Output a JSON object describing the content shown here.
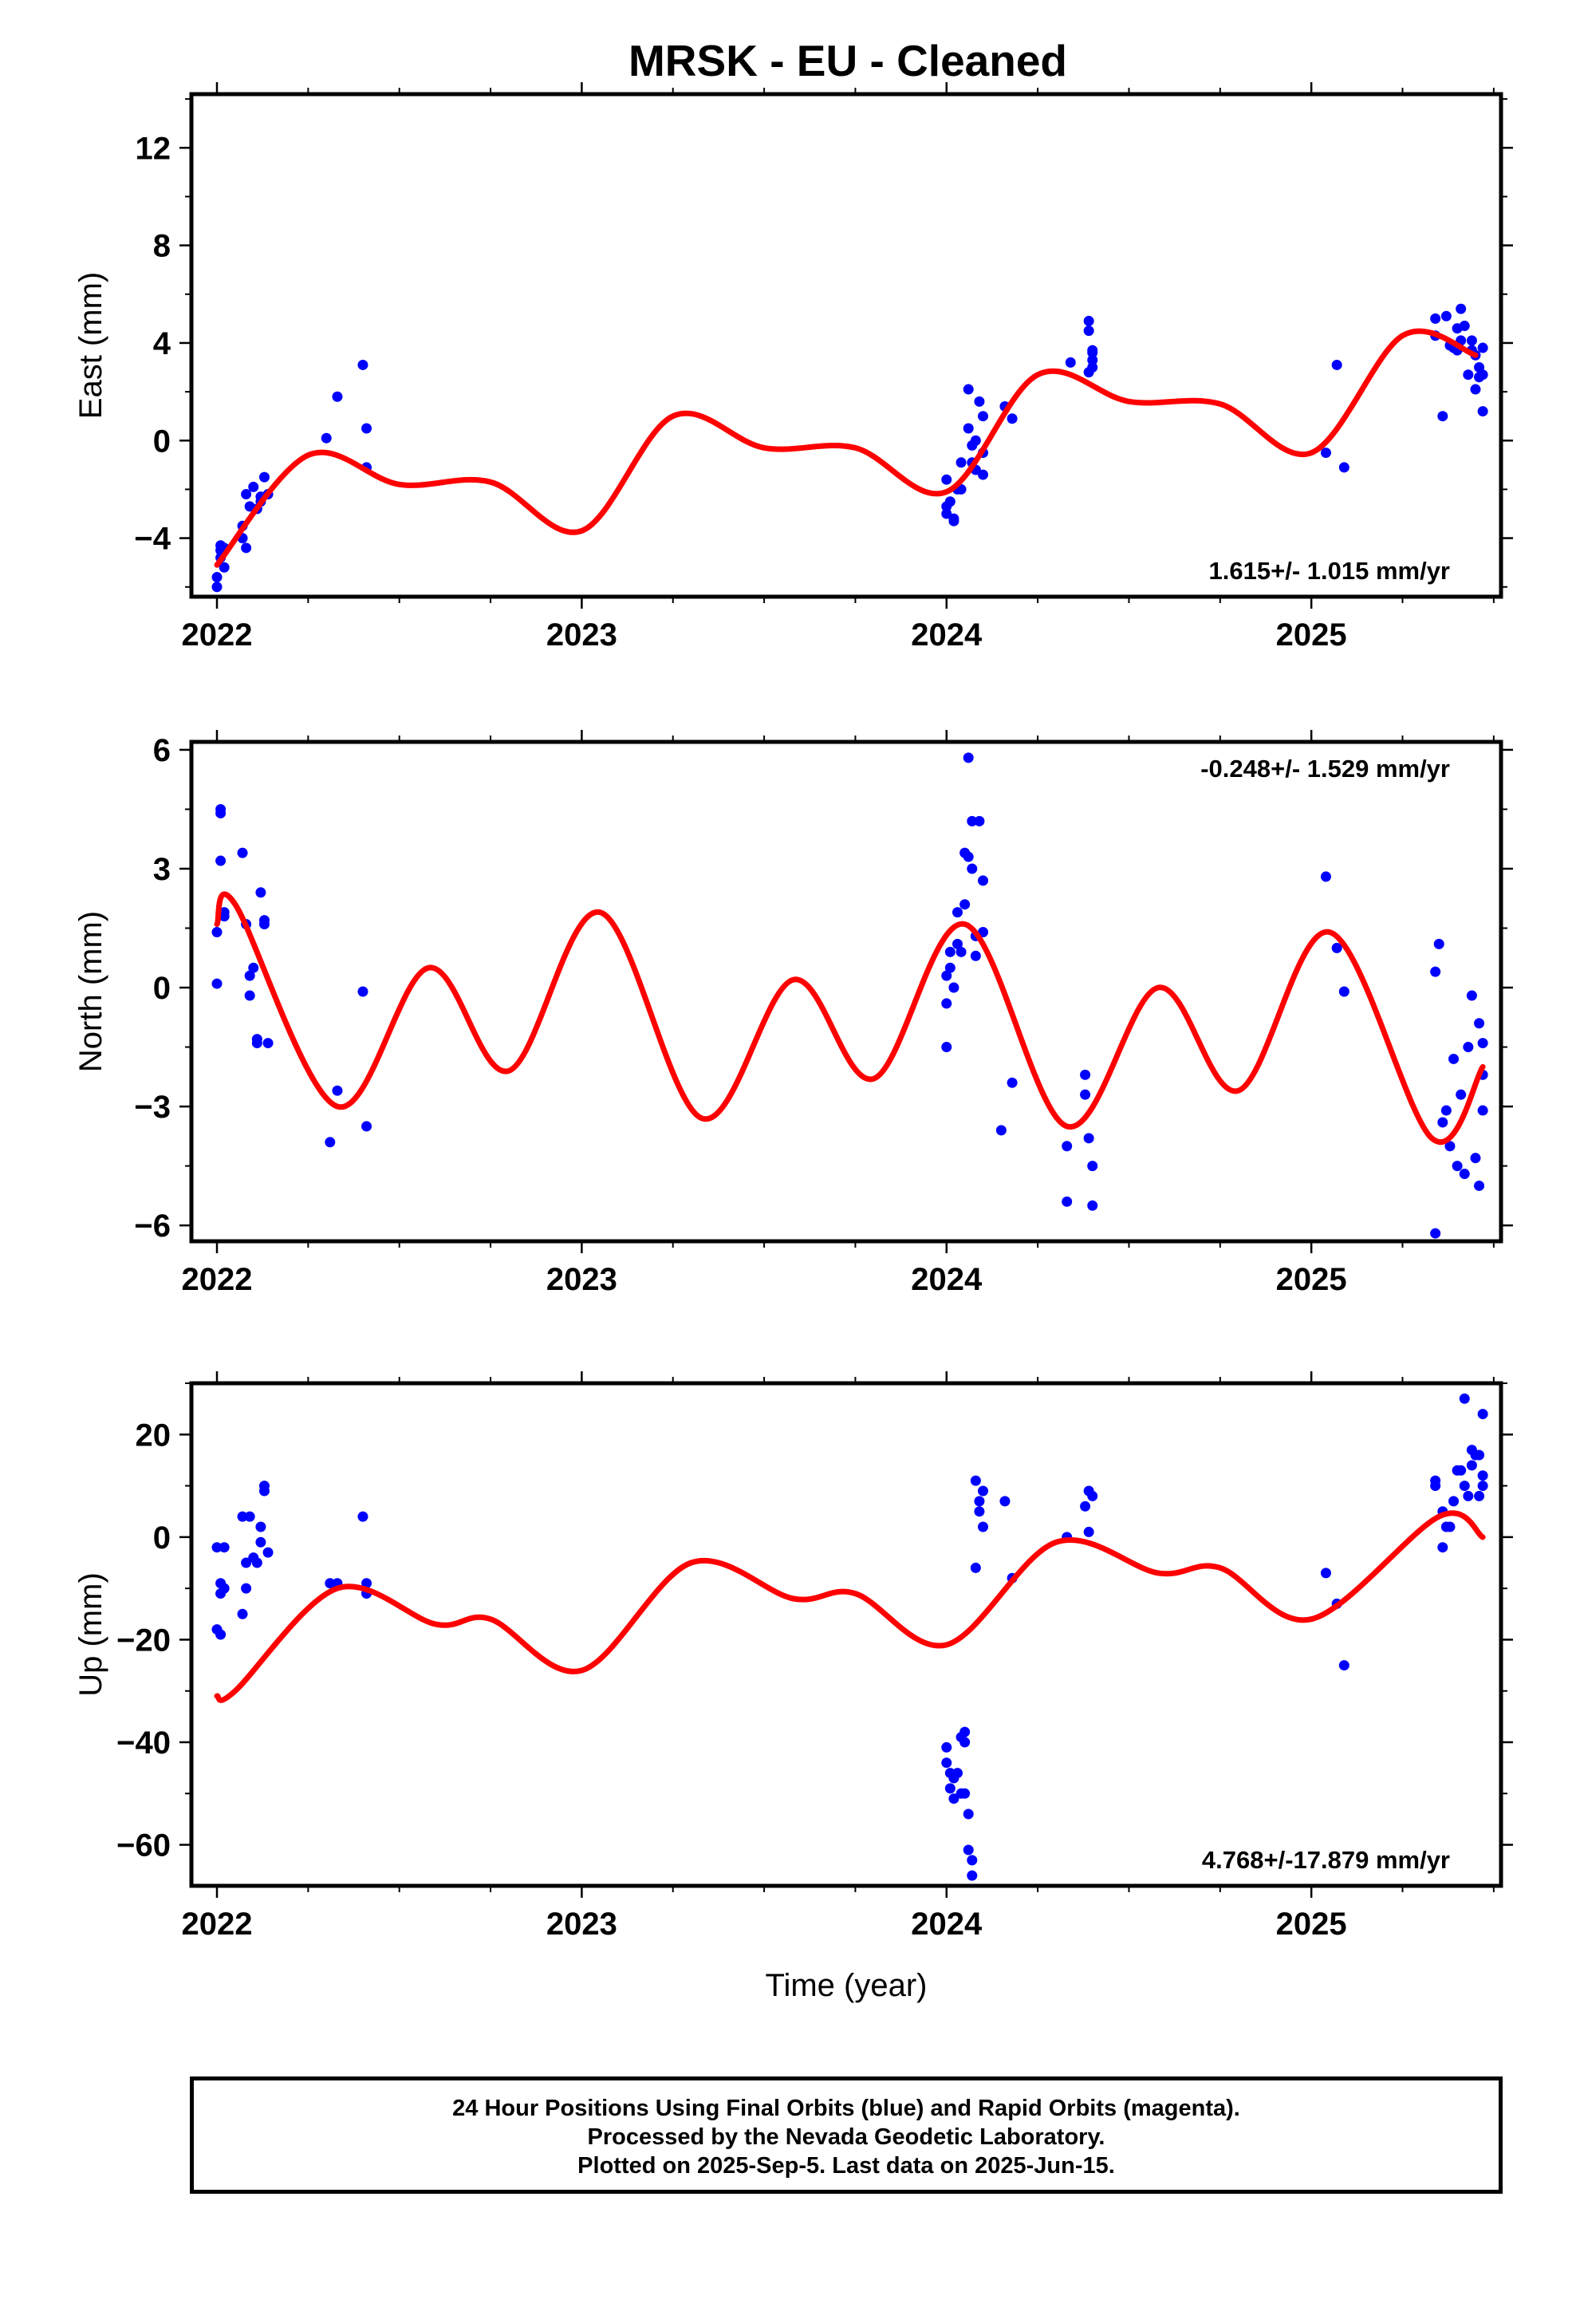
{
  "title": "MRSK  - EU - Cleaned",
  "x_axis_label": "Time (year)",
  "footer": [
    "24 Hour Positions Using Final Orbits (blue) and Rapid Orbits (magenta).",
    "Processed by the Nevada Geodetic Laboratory.",
    "Plotted on 2025-Sep-5. Last data on 2025-Jun-15."
  ],
  "colors": {
    "final_orbits": "#0000ff",
    "model": "#ff0000",
    "frame": "#000000"
  },
  "chart_data": [
    {
      "type": "scatter",
      "ylabel": "East (mm)",
      "xlim": [
        2021.93,
        2025.52
      ],
      "ylim": [
        -6.4,
        14.2
      ],
      "x_ticks": [
        2022,
        2023,
        2024,
        2025
      ],
      "y_ticks": [
        -4,
        0,
        4,
        8,
        12
      ],
      "annotation": "1.615+/- 1.015 mm/yr",
      "annotation_position": "bottom-right",
      "series": [
        {
          "role": "points",
          "x": [
            2022.0,
            2022.0,
            2022.01,
            2022.01,
            2022.01,
            2022.02,
            2022.02,
            2022.07,
            2022.07,
            2022.08,
            2022.08,
            2022.09,
            2022.1,
            2022.11,
            2022.12,
            2022.12,
            2022.13,
            2022.14,
            2022.3,
            2022.33,
            2022.4,
            2022.41,
            2022.41,
            2024.0,
            2024.0,
            2024.0,
            2024.01,
            2024.02,
            2024.02,
            2024.03,
            2024.04,
            2024.04,
            2024.06,
            2024.06,
            2024.07,
            2024.07,
            2024.08,
            2024.08,
            2024.09,
            2024.1,
            2024.1,
            2024.1,
            2024.16,
            2024.18,
            2024.34,
            2024.39,
            2024.39,
            2024.39,
            2024.4,
            2024.4,
            2024.4,
            2024.4,
            2025.04,
            2025.07,
            2025.09,
            2025.34,
            2025.34,
            2025.36,
            2025.37,
            2025.38,
            2025.39,
            2025.4,
            2025.4,
            2025.41,
            2025.41,
            2025.42,
            2025.43,
            2025.44,
            2025.44,
            2025.45,
            2025.45,
            2025.46,
            2025.46,
            2025.47,
            2025.47,
            2025.47
          ],
          "y": [
            -5.6,
            -6.0,
            -4.8,
            -4.5,
            -4.3,
            -5.2,
            -4.4,
            -3.5,
            -4.0,
            -2.2,
            -4.4,
            -2.7,
            -1.9,
            -2.8,
            -2.3,
            -2.5,
            -1.5,
            -2.2,
            0.1,
            1.8,
            3.1,
            0.5,
            -1.1,
            -1.6,
            -2.7,
            -3.0,
            -2.5,
            -3.2,
            -3.3,
            -2.0,
            -0.9,
            -2.0,
            2.1,
            0.5,
            -0.2,
            -0.9,
            -1.2,
            0.0,
            1.6,
            -1.4,
            1.0,
            -0.5,
            1.4,
            0.9,
            3.2,
            2.8,
            4.9,
            4.5,
            3.6,
            3.7,
            3.0,
            3.3,
            -0.5,
            3.1,
            -1.1,
            4.3,
            5.0,
            1.0,
            5.1,
            3.9,
            3.8,
            3.7,
            4.6,
            4.1,
            5.4,
            4.7,
            2.7,
            4.1,
            3.7,
            3.5,
            2.1,
            3.0,
            2.6,
            1.2,
            3.8,
            2.7
          ],
          "color": "#0000ff"
        },
        {
          "role": "model",
          "x": [
            2022.0,
            2022.25,
            2022.5,
            2022.75,
            2023.0,
            2023.25,
            2023.5,
            2023.75,
            2024.0,
            2024.25,
            2024.5,
            2024.75,
            2025.0,
            2025.25,
            2025.45
          ],
          "y": [
            -5.1,
            -0.6,
            -1.8,
            -1.7,
            -3.7,
            1.0,
            -0.3,
            -0.3,
            -2.1,
            2.7,
            1.6,
            1.5,
            -0.5,
            4.3,
            3.5
          ],
          "color": "#ff0000"
        }
      ]
    },
    {
      "type": "scatter",
      "ylabel": "North (mm)",
      "xlim": [
        2021.93,
        2025.52
      ],
      "ylim": [
        -6.4,
        6.2
      ],
      "x_ticks": [
        2022,
        2023,
        2024,
        2025
      ],
      "y_ticks": [
        -6,
        -3,
        0,
        3,
        6
      ],
      "annotation": "-0.248+/- 1.529 mm/yr",
      "annotation_position": "top-right",
      "series": [
        {
          "role": "points",
          "x": [
            2022.0,
            2022.0,
            2022.01,
            2022.01,
            2022.01,
            2022.02,
            2022.02,
            2022.07,
            2022.08,
            2022.09,
            2022.09,
            2022.1,
            2022.11,
            2022.11,
            2022.12,
            2022.13,
            2022.13,
            2022.14,
            2022.31,
            2022.33,
            2022.4,
            2022.41,
            2024.0,
            2024.0,
            2024.0,
            2024.01,
            2024.01,
            2024.02,
            2024.03,
            2024.03,
            2024.04,
            2024.05,
            2024.05,
            2024.06,
            2024.06,
            2024.07,
            2024.07,
            2024.08,
            2024.08,
            2024.09,
            2024.1,
            2024.1,
            2024.15,
            2024.18,
            2024.33,
            2024.33,
            2024.38,
            2024.38,
            2024.39,
            2024.4,
            2024.4,
            2025.04,
            2025.07,
            2025.09,
            2025.34,
            2025.34,
            2025.35,
            2025.36,
            2025.37,
            2025.38,
            2025.39,
            2025.4,
            2025.41,
            2025.42,
            2025.43,
            2025.44,
            2025.45,
            2025.46,
            2025.46,
            2025.47,
            2025.47,
            2025.47
          ],
          "y": [
            0.1,
            1.4,
            4.4,
            4.5,
            3.2,
            1.9,
            1.8,
            3.4,
            1.6,
            0.3,
            -0.2,
            0.5,
            -1.3,
            -1.4,
            2.4,
            1.6,
            1.7,
            -1.4,
            -3.9,
            -2.6,
            -0.1,
            -3.5,
            -0.4,
            -1.5,
            0.3,
            0.9,
            0.5,
            0.0,
            1.9,
            1.1,
            0.9,
            3.4,
            2.1,
            5.8,
            3.3,
            4.2,
            3.0,
            0.8,
            1.3,
            4.2,
            2.7,
            1.4,
            -3.6,
            -2.4,
            -5.4,
            -4.0,
            -2.2,
            -2.7,
            -3.8,
            -4.5,
            -5.5,
            2.8,
            1.0,
            -0.1,
            -6.2,
            0.4,
            1.1,
            -3.4,
            -3.1,
            -4.0,
            -1.8,
            -4.5,
            -2.7,
            -4.7,
            -1.5,
            -0.2,
            -4.3,
            -0.9,
            -5.0,
            -1.4,
            -3.1,
            -2.2
          ],
          "color": "#0000ff"
        },
        {
          "role": "model",
          "x": [
            2022.0,
            2022.05,
            2022.33,
            2022.58,
            2022.8,
            2023.05,
            2023.33,
            2023.58,
            2023.8,
            2024.05,
            2024.33,
            2024.58,
            2024.8,
            2025.05,
            2025.33,
            2025.47
          ],
          "y": [
            1.6,
            2.1,
            -3.0,
            0.5,
            -2.1,
            1.9,
            -3.3,
            0.2,
            -2.3,
            1.6,
            -3.5,
            0.0,
            -2.6,
            1.4,
            -3.8,
            -2.0
          ],
          "color": "#ff0000"
        }
      ]
    },
    {
      "type": "scatter",
      "ylabel": "Up (mm)",
      "xlabel": "Time (year)",
      "xlim": [
        2021.93,
        2025.52
      ],
      "ylim": [
        -68,
        30
      ],
      "x_ticks": [
        2022,
        2023,
        2024,
        2025
      ],
      "y_ticks": [
        -60,
        -40,
        -20,
        0,
        20
      ],
      "annotation": "4.768+/-17.879 mm/yr",
      "annotation_position": "bottom-right",
      "series": [
        {
          "role": "points",
          "x": [
            2022.0,
            2022.0,
            2022.01,
            2022.01,
            2022.01,
            2022.02,
            2022.02,
            2022.07,
            2022.07,
            2022.08,
            2022.08,
            2022.09,
            2022.1,
            2022.11,
            2022.12,
            2022.12,
            2022.13,
            2022.13,
            2022.14,
            2022.31,
            2022.33,
            2022.4,
            2022.41,
            2022.41,
            2024.0,
            2024.0,
            2024.01,
            2024.01,
            2024.02,
            2024.02,
            2024.03,
            2024.04,
            2024.04,
            2024.05,
            2024.05,
            2024.05,
            2024.06,
            2024.06,
            2024.07,
            2024.07,
            2024.08,
            2024.08,
            2024.09,
            2024.09,
            2024.1,
            2024.1,
            2024.16,
            2024.18,
            2024.33,
            2024.38,
            2024.39,
            2024.39,
            2024.4,
            2025.04,
            2025.07,
            2025.09,
            2025.34,
            2025.34,
            2025.36,
            2025.36,
            2025.37,
            2025.38,
            2025.39,
            2025.4,
            2025.41,
            2025.42,
            2025.42,
            2025.43,
            2025.44,
            2025.44,
            2025.45,
            2025.46,
            2025.46,
            2025.47,
            2025.47,
            2025.47
          ],
          "y": [
            -2,
            -18,
            -9,
            -19,
            -11,
            -2,
            -10,
            4,
            -15,
            -5,
            -10,
            4,
            -4,
            -5,
            -1,
            2,
            9,
            10,
            -3,
            -9,
            -9,
            4,
            -9,
            -11,
            -41,
            -44,
            -46,
            -49,
            -51,
            -47,
            -46,
            -39,
            -50,
            -38,
            -40,
            -50,
            -54,
            -61,
            -63,
            -66,
            -6,
            11,
            7,
            5,
            9,
            2,
            7,
            -8,
            0,
            6,
            1,
            9,
            8,
            -7,
            -13,
            -25,
            10,
            11,
            5,
            -2,
            2,
            2,
            7,
            13,
            13,
            10,
            27,
            8,
            17,
            14,
            16,
            16,
            8,
            24,
            12,
            10
          ],
          "color": "#0000ff"
        },
        {
          "role": "model",
          "x": [
            2022.0,
            2022.05,
            2022.33,
            2022.6,
            2022.75,
            2023.0,
            2023.3,
            2023.58,
            2023.75,
            2024.0,
            2024.3,
            2024.58,
            2024.75,
            2025.0,
            2025.35,
            2025.47
          ],
          "y": [
            -31,
            -30,
            -10,
            -17,
            -16,
            -26,
            -5,
            -12,
            -11,
            -21,
            -1,
            -7,
            -6,
            -16,
            4,
            0
          ],
          "color": "#ff0000"
        }
      ]
    }
  ]
}
